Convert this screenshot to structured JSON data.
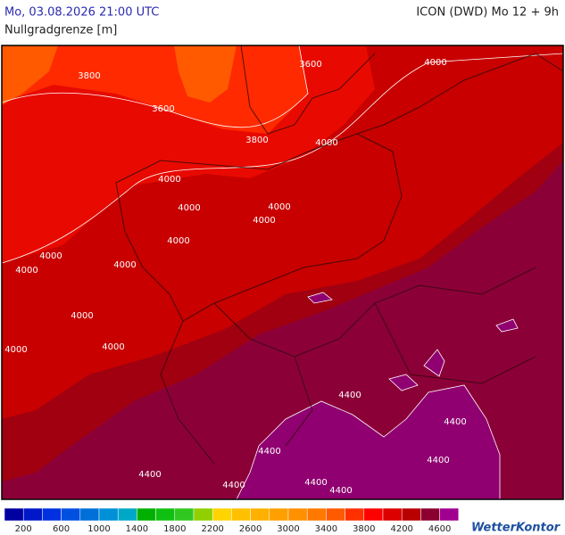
{
  "header": {
    "datetime": "Mo, 03.08.2026 21:00 UTC",
    "model": "ICON (DWD) Mo 12 + 9h",
    "parameter": "Nullgradgrenze [m]"
  },
  "contour_labels": [
    "3800",
    "3600",
    "4000",
    "3600",
    "3800",
    "4000",
    "4000",
    "4000",
    "4000",
    "4000",
    "4000",
    "4000",
    "4000",
    "4000",
    "4000",
    "4000",
    "4000",
    "4400",
    "4400",
    "4400",
    "4400",
    "4400",
    "4400",
    "4400",
    "4400"
  ],
  "legend": {
    "colors": [
      "#0000a0",
      "#0018c8",
      "#0030e0",
      "#0050e0",
      "#0070d8",
      "#0090d8",
      "#00a8c8",
      "#00b000",
      "#10c010",
      "#30c820",
      "#90d000",
      "#ffd400",
      "#ffc000",
      "#ffb000",
      "#ffa000",
      "#ff9000",
      "#ff7800",
      "#ff5a00",
      "#ff3000",
      "#ff0000",
      "#dd0000",
      "#b80000",
      "#8c0030",
      "#a00090"
    ],
    "labels": [
      200,
      600,
      1000,
      1400,
      1800,
      2200,
      2600,
      3000,
      3400,
      3800,
      4200,
      4600
    ]
  },
  "logo": "WetterKontor"
}
